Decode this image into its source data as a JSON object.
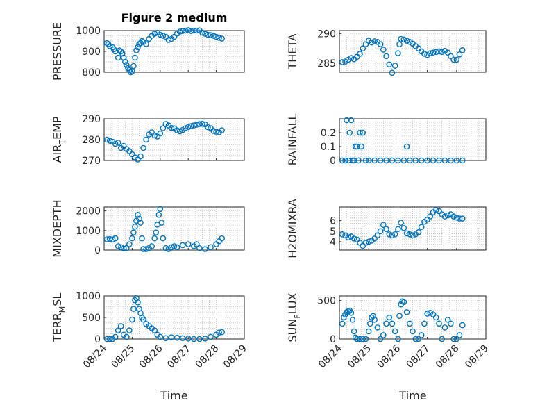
{
  "figure": {
    "title": "Figure 2 medium",
    "xlabel": "Time",
    "x_ticks": [
      "08/24",
      "08/25",
      "08/26",
      "08/27",
      "08/28",
      "08/29"
    ],
    "marker_color": "#0072bd"
  },
  "chart_data": [
    {
      "type": "scatter",
      "name": "pressure",
      "ylabel": "PRESSURE",
      "ylim": [
        800,
        1000
      ],
      "yticks": [
        800,
        900,
        1000
      ],
      "xlim": [
        0,
        5
      ],
      "x_days": [
        0.1,
        0.15,
        0.2,
        0.3,
        0.35,
        0.4,
        0.5,
        0.55,
        0.6,
        0.65,
        0.7,
        0.75,
        0.8,
        0.85,
        0.9,
        0.95,
        1.0,
        1.05,
        1.1,
        1.15,
        1.2,
        1.25,
        1.3,
        1.35,
        1.4,
        1.5,
        1.6,
        1.7,
        1.8,
        1.9,
        2.0,
        2.1,
        2.2,
        2.3,
        2.4,
        2.5,
        2.6,
        2.7,
        2.8,
        2.9,
        3.0,
        3.1,
        3.2,
        3.3,
        3.4,
        3.5,
        3.6,
        3.7,
        3.8,
        3.9,
        4.0,
        4.1,
        4.2
      ],
      "values": [
        940,
        935,
        925,
        920,
        910,
        900,
        870,
        905,
        900,
        890,
        870,
        850,
        835,
        820,
        810,
        800,
        805,
        830,
        870,
        905,
        920,
        935,
        940,
        950,
        945,
        935,
        960,
        975,
        985,
        990,
        980,
        975,
        970,
        955,
        960,
        970,
        985,
        995,
        998,
        1000,
        1002,
        998,
        1000,
        1000,
        1001,
        990,
        985,
        980,
        978,
        975,
        970,
        965,
        962
      ]
    },
    {
      "type": "scatter",
      "name": "theta",
      "ylabel": "THETA",
      "ylim": [
        283.5,
        290.5
      ],
      "yticks": [
        285,
        290
      ],
      "xlim": [
        0,
        5
      ],
      "x_days": [
        0.1,
        0.2,
        0.3,
        0.4,
        0.5,
        0.6,
        0.7,
        0.8,
        0.9,
        1.0,
        1.1,
        1.2,
        1.3,
        1.4,
        1.5,
        1.6,
        1.7,
        1.8,
        1.9,
        2.0,
        2.05,
        2.1,
        2.2,
        2.3,
        2.4,
        2.5,
        2.6,
        2.7,
        2.8,
        2.9,
        3.0,
        3.1,
        3.2,
        3.3,
        3.4,
        3.5,
        3.6,
        3.7,
        3.8,
        3.9,
        4.0,
        4.1,
        4.2
      ],
      "values": [
        285.2,
        285.3,
        285.6,
        285.9,
        285.7,
        286.1,
        286.6,
        287.5,
        288.2,
        288.8,
        288.5,
        288.7,
        288.6,
        288.2,
        287.3,
        286.2,
        284.8,
        283.4,
        284.6,
        286.7,
        288.2,
        289.1,
        289.0,
        288.8,
        288.6,
        288.3,
        287.9,
        287.5,
        287.0,
        286.6,
        286.4,
        286.7,
        286.8,
        286.9,
        287.0,
        286.9,
        287.1,
        286.8,
        286.2,
        285.6,
        285.6,
        286.5,
        287.2
      ]
    },
    {
      "type": "scatter",
      "name": "air_temp",
      "ylabel_main": "AIR",
      "ylabel_sub": "T",
      "ylabel_tail": "EMP",
      "ylim": [
        270,
        290
      ],
      "yticks": [
        270,
        280,
        290
      ],
      "xlim": [
        0,
        5
      ],
      "x_days": [
        0.1,
        0.2,
        0.3,
        0.4,
        0.5,
        0.6,
        0.7,
        0.8,
        0.9,
        1.0,
        1.1,
        1.2,
        1.3,
        1.4,
        1.5,
        1.6,
        1.7,
        1.8,
        1.9,
        2.0,
        2.1,
        2.2,
        2.3,
        2.4,
        2.5,
        2.6,
        2.7,
        2.8,
        2.9,
        3.0,
        3.1,
        3.2,
        3.3,
        3.4,
        3.5,
        3.6,
        3.7,
        3.8,
        3.9,
        4.0,
        4.1,
        4.2
      ],
      "values": [
        280,
        279.5,
        279,
        278,
        278.5,
        276,
        277,
        275.5,
        274.5,
        273,
        271.5,
        270.5,
        272,
        276,
        280,
        282.5,
        283.5,
        282,
        281.5,
        283,
        285.5,
        287.5,
        286.8,
        285.6,
        285.4,
        284.5,
        284,
        284.6,
        285.5,
        286,
        286.5,
        286.8,
        287.2,
        287.5,
        287.6,
        287.3,
        286,
        285.5,
        284.2,
        283.8,
        283.5,
        284.5
      ]
    },
    {
      "type": "scatter",
      "name": "rainfall",
      "ylabel": "RAINFALL",
      "ylim": [
        0,
        0.3
      ],
      "yticks": [
        0,
        0.1,
        0.2
      ],
      "xlim": [
        0,
        5
      ],
      "x_days": [
        0.1,
        0.2,
        0.25,
        0.3,
        0.35,
        0.4,
        0.45,
        0.5,
        0.55,
        0.6,
        0.65,
        0.7,
        0.75,
        0.8,
        0.9,
        1.0,
        1.2,
        1.4,
        1.6,
        1.8,
        2.0,
        2.2,
        2.3,
        2.4,
        2.6,
        2.8,
        3.0,
        3.2,
        3.4,
        3.6,
        3.8,
        4.0,
        4.2
      ],
      "values": [
        0,
        0,
        0.29,
        0,
        0.2,
        0.29,
        0,
        0,
        0.1,
        0.1,
        0,
        0.2,
        0.1,
        0.2,
        0,
        0,
        0,
        0,
        0,
        0,
        0,
        0,
        0.1,
        0,
        0,
        0,
        0,
        0,
        0,
        0,
        0,
        0,
        0
      ]
    },
    {
      "type": "scatter",
      "name": "mixdepth",
      "ylabel": "MIXDEPTH",
      "ylim": [
        0,
        2200
      ],
      "yticks": [
        0,
        1000,
        2000
      ],
      "xlim": [
        0,
        5
      ],
      "x_days": [
        0.1,
        0.2,
        0.3,
        0.4,
        0.5,
        0.6,
        0.7,
        0.8,
        0.9,
        1.0,
        1.05,
        1.1,
        1.15,
        1.2,
        1.25,
        1.3,
        1.35,
        1.4,
        1.5,
        1.6,
        1.7,
        1.8,
        1.85,
        1.9,
        1.95,
        2.0,
        2.05,
        2.1,
        2.2,
        2.3,
        2.4,
        2.5,
        2.6,
        2.8,
        3.0,
        3.2,
        3.3,
        3.4,
        3.6,
        3.8,
        4.0,
        4.1,
        4.2
      ],
      "values": [
        550,
        560,
        540,
        600,
        200,
        150,
        80,
        100,
        300,
        600,
        900,
        1200,
        1500,
        1800,
        1600,
        1400,
        600,
        50,
        50,
        100,
        200,
        600,
        900,
        1300,
        1800,
        2100,
        1400,
        600,
        100,
        50,
        150,
        200,
        150,
        250,
        300,
        200,
        300,
        100,
        50,
        150,
        300,
        450,
        600
      ]
    },
    {
      "type": "scatter",
      "name": "h2omixra",
      "ylabel": "H2OMIXRA",
      "ylim": [
        3.2,
        7.3
      ],
      "yticks": [
        4,
        5,
        6
      ],
      "xlim": [
        0,
        5
      ],
      "x_days": [
        0.1,
        0.2,
        0.3,
        0.4,
        0.5,
        0.6,
        0.7,
        0.8,
        0.9,
        1.0,
        1.1,
        1.2,
        1.3,
        1.4,
        1.5,
        1.6,
        1.7,
        1.8,
        1.9,
        2.0,
        2.1,
        2.2,
        2.3,
        2.4,
        2.5,
        2.6,
        2.7,
        2.8,
        2.9,
        3.0,
        3.1,
        3.2,
        3.3,
        3.4,
        3.5,
        3.6,
        3.7,
        3.8,
        3.9,
        4.0,
        4.1,
        4.2
      ],
      "values": [
        4.7,
        4.6,
        4.4,
        4.5,
        4.3,
        4.2,
        3.9,
        3.6,
        3.9,
        4.0,
        4.1,
        4.3,
        4.6,
        5.0,
        5.6,
        5.2,
        4.7,
        4.6,
        4.7,
        5.2,
        5.8,
        5.3,
        4.8,
        4.7,
        4.6,
        4.7,
        4.9,
        5.4,
        5.9,
        6.1,
        6.4,
        6.8,
        7.0,
        6.9,
        6.6,
        6.4,
        6.5,
        6.6,
        6.4,
        6.3,
        6.2,
        6.2
      ]
    },
    {
      "type": "scatter",
      "name": "terr_msl",
      "ylabel_main": "TERR",
      "ylabel_sub": "M",
      "ylabel_tail": "SL",
      "ylim": [
        0,
        1000
      ],
      "yticks": [
        0,
        500,
        1000
      ],
      "xlim": [
        0,
        5
      ],
      "x_days": [
        0.1,
        0.2,
        0.3,
        0.4,
        0.5,
        0.6,
        0.7,
        0.8,
        0.9,
        1.0,
        1.05,
        1.1,
        1.15,
        1.2,
        1.25,
        1.3,
        1.35,
        1.4,
        1.5,
        1.6,
        1.7,
        1.8,
        1.9,
        2.0,
        2.2,
        2.4,
        2.6,
        2.8,
        3.0,
        3.2,
        3.4,
        3.6,
        3.8,
        4.0,
        4.1,
        4.2
      ],
      "values": [
        0,
        0,
        0,
        50,
        200,
        300,
        100,
        50,
        200,
        450,
        700,
        900,
        950,
        850,
        700,
        600,
        500,
        450,
        350,
        300,
        250,
        200,
        100,
        50,
        20,
        40,
        30,
        20,
        10,
        0,
        0,
        10,
        50,
        100,
        150,
        160
      ]
    },
    {
      "type": "scatter",
      "name": "sun_flux",
      "ylabel_main": "SUN",
      "ylabel_sub": "F",
      "ylabel_tail": "LUX",
      "ylim": [
        0,
        560
      ],
      "yticks": [
        0,
        500
      ],
      "xlim": [
        0,
        5
      ],
      "x_days": [
        0.1,
        0.15,
        0.2,
        0.25,
        0.3,
        0.35,
        0.4,
        0.45,
        0.5,
        0.55,
        0.6,
        0.7,
        0.8,
        0.9,
        1.0,
        1.05,
        1.1,
        1.15,
        1.2,
        1.3,
        1.4,
        1.5,
        1.6,
        1.7,
        1.8,
        1.9,
        2.0,
        2.05,
        2.1,
        2.15,
        2.2,
        2.3,
        2.4,
        2.5,
        2.6,
        2.7,
        2.8,
        2.9,
        3.0,
        3.1,
        3.2,
        3.3,
        3.4,
        3.5,
        3.6,
        3.7,
        3.8,
        3.9,
        4.0,
        4.1,
        4.2
      ],
      "values": [
        200,
        280,
        320,
        350,
        360,
        370,
        340,
        250,
        100,
        20,
        0,
        0,
        0,
        0,
        100,
        200,
        280,
        300,
        250,
        150,
        0,
        50,
        200,
        280,
        200,
        100,
        0,
        300,
        450,
        490,
        480,
        350,
        200,
        100,
        0,
        0,
        50,
        200,
        330,
        340,
        320,
        280,
        200,
        0,
        150,
        250,
        200,
        0,
        0,
        50,
        180
      ]
    }
  ]
}
